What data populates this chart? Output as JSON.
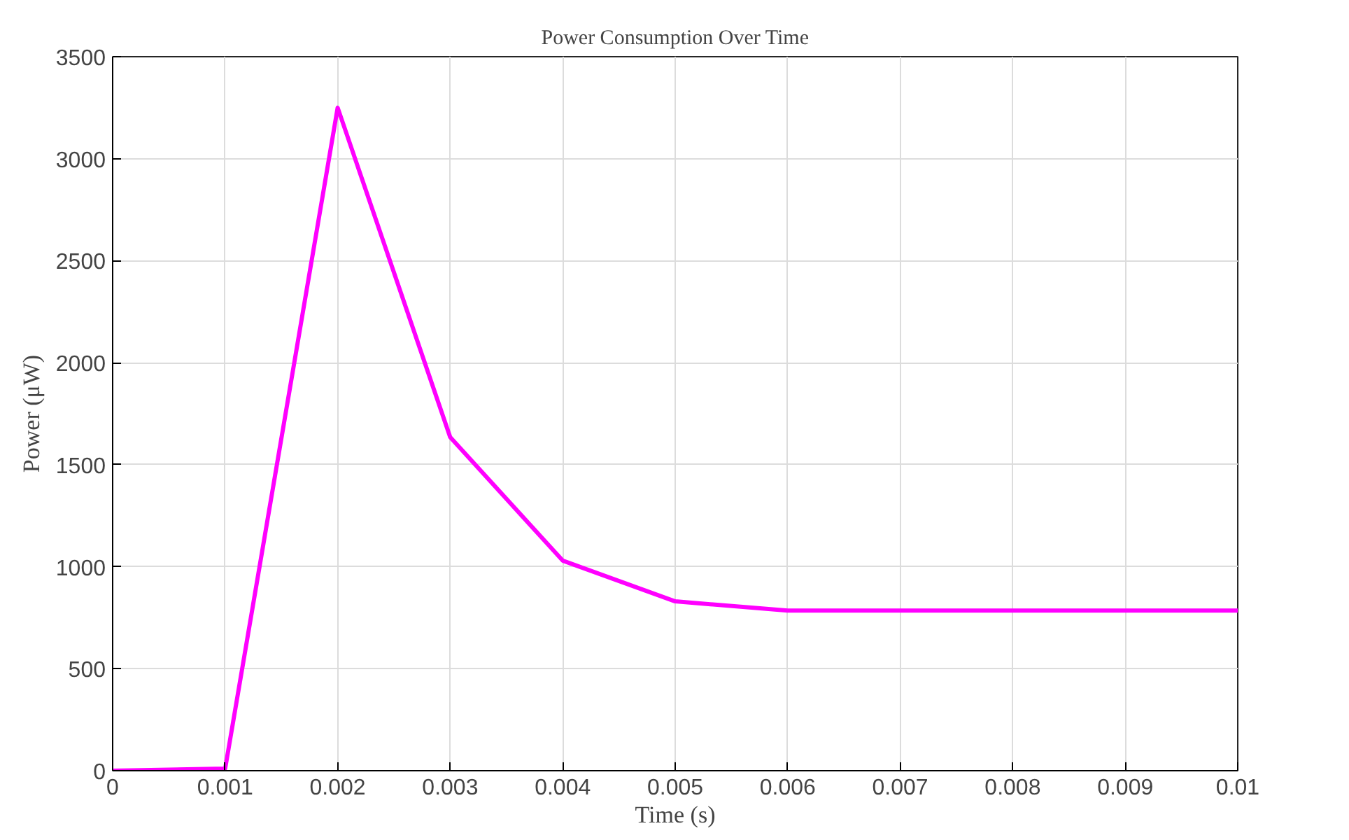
{
  "chart_data": {
    "type": "line",
    "title": "Power Consumption Over Time",
    "xlabel": "Time (s)",
    "ylabel": "Power (μW)",
    "x": [
      0,
      0.001,
      0.002,
      0.003,
      0.004,
      0.005,
      0.006,
      0.007,
      0.008,
      0.009,
      0.01
    ],
    "series": [
      {
        "color": "#ff00ff",
        "values": [
          0,
          10,
          3250,
          1635,
          1030,
          830,
          785,
          785,
          785,
          785,
          785
        ]
      }
    ],
    "xlim": [
      0,
      0.01
    ],
    "ylim": [
      0,
      3500
    ],
    "xticks": [
      0,
      0.001,
      0.002,
      0.003,
      0.004,
      0.005,
      0.006,
      0.007,
      0.008,
      0.009,
      0.01
    ],
    "yticks": [
      0,
      500,
      1000,
      1500,
      2000,
      2500,
      3000,
      3500
    ],
    "grid": true,
    "marker": "none",
    "line_style": "solid"
  }
}
